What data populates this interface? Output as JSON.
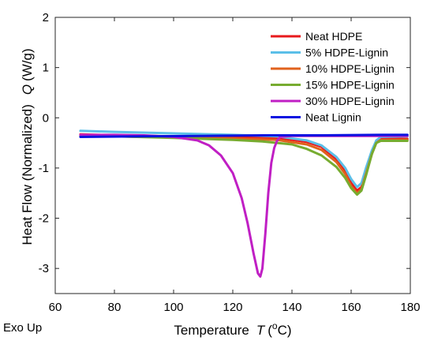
{
  "chart_data": {
    "type": "line",
    "xlabel": "Temperature",
    "xlabel_var": "T",
    "xlabel_unit_open": "(",
    "xlabel_unit_sup": "o",
    "xlabel_unit_rest": "C)",
    "ylabel": "Heat Flow (Normalized)",
    "ylabel_var": "Q",
    "ylabel_unit": "(W/g)",
    "annotation": "Exo Up",
    "xlim": [
      60,
      180
    ],
    "ylim": [
      -3.5,
      2
    ],
    "xticks": [
      60,
      80,
      100,
      120,
      140,
      160,
      180
    ],
    "yticks": [
      2,
      1,
      0,
      -1,
      -2,
      -3
    ],
    "grid": false,
    "legend_position": "top-right",
    "series": [
      {
        "name": "Neat HDPE",
        "color": "#e8191c",
        "points": [
          [
            68.5,
            -0.33
          ],
          [
            80,
            -0.35
          ],
          [
            100,
            -0.37
          ],
          [
            120,
            -0.38
          ],
          [
            135,
            -0.4
          ],
          [
            145,
            -0.48
          ],
          [
            150,
            -0.58
          ],
          [
            155,
            -0.82
          ],
          [
            158,
            -1.05
          ],
          [
            160,
            -1.3
          ],
          [
            162,
            -1.45
          ],
          [
            163.5,
            -1.38
          ],
          [
            165,
            -1.1
          ],
          [
            167,
            -0.7
          ],
          [
            168.5,
            -0.48
          ],
          [
            170,
            -0.42
          ],
          [
            179,
            -0.42
          ]
        ]
      },
      {
        "name": "5% HDPE-Lignin",
        "color": "#5bbfe8",
        "points": [
          [
            68.5,
            -0.26
          ],
          [
            80,
            -0.28
          ],
          [
            100,
            -0.31
          ],
          [
            120,
            -0.34
          ],
          [
            135,
            -0.37
          ],
          [
            145,
            -0.45
          ],
          [
            150,
            -0.55
          ],
          [
            155,
            -0.78
          ],
          [
            158,
            -1.0
          ],
          [
            160,
            -1.22
          ],
          [
            162,
            -1.38
          ],
          [
            163.5,
            -1.3
          ],
          [
            165,
            -1.0
          ],
          [
            167,
            -0.65
          ],
          [
            168.5,
            -0.45
          ],
          [
            170,
            -0.38
          ],
          [
            179,
            -0.37
          ]
        ]
      },
      {
        "name": "10% HDPE-Lignin",
        "color": "#e0621c",
        "points": [
          [
            68.5,
            -0.36
          ],
          [
            80,
            -0.37
          ],
          [
            100,
            -0.39
          ],
          [
            120,
            -0.41
          ],
          [
            135,
            -0.44
          ],
          [
            145,
            -0.53
          ],
          [
            150,
            -0.64
          ],
          [
            155,
            -0.88
          ],
          [
            158,
            -1.12
          ],
          [
            160,
            -1.36
          ],
          [
            162,
            -1.5
          ],
          [
            163.5,
            -1.42
          ],
          [
            165,
            -1.12
          ],
          [
            167,
            -0.72
          ],
          [
            168.5,
            -0.5
          ],
          [
            170,
            -0.44
          ],
          [
            179,
            -0.44
          ]
        ]
      },
      {
        "name": "15% HDPE-Lignin",
        "color": "#77ac30",
        "points": [
          [
            68.5,
            -0.36
          ],
          [
            80,
            -0.37
          ],
          [
            100,
            -0.4
          ],
          [
            120,
            -0.44
          ],
          [
            130,
            -0.47
          ],
          [
            140,
            -0.53
          ],
          [
            145,
            -0.62
          ],
          [
            150,
            -0.75
          ],
          [
            155,
            -0.98
          ],
          [
            158,
            -1.2
          ],
          [
            160,
            -1.4
          ],
          [
            162,
            -1.53
          ],
          [
            163.5,
            -1.45
          ],
          [
            165,
            -1.15
          ],
          [
            167,
            -0.72
          ],
          [
            168.5,
            -0.5
          ],
          [
            170,
            -0.46
          ],
          [
            179,
            -0.46
          ]
        ]
      },
      {
        "name": "30% HDPE-Lignin",
        "color": "#c01fc4",
        "points": [
          [
            68.5,
            -0.34
          ],
          [
            80,
            -0.34
          ],
          [
            90,
            -0.35
          ],
          [
            100,
            -0.38
          ],
          [
            108,
            -0.45
          ],
          [
            112,
            -0.55
          ],
          [
            116,
            -0.75
          ],
          [
            120,
            -1.1
          ],
          [
            123,
            -1.6
          ],
          [
            125,
            -2.1
          ],
          [
            127,
            -2.7
          ],
          [
            128.5,
            -3.1
          ],
          [
            129.3,
            -3.16
          ],
          [
            130,
            -3.0
          ],
          [
            131,
            -2.3
          ],
          [
            132,
            -1.5
          ],
          [
            133,
            -0.9
          ],
          [
            134,
            -0.6
          ],
          [
            135,
            -0.45
          ],
          [
            136,
            -0.38
          ],
          [
            140,
            -0.36
          ],
          [
            150,
            -0.36
          ],
          [
            160,
            -0.36
          ],
          [
            170,
            -0.36
          ],
          [
            179,
            -0.36
          ]
        ]
      },
      {
        "name": "Neat Lignin",
        "color": "#0a12e0",
        "points": [
          [
            68.5,
            -0.38
          ],
          [
            90,
            -0.37
          ],
          [
            110,
            -0.36
          ],
          [
            130,
            -0.35
          ],
          [
            150,
            -0.35
          ],
          [
            170,
            -0.34
          ],
          [
            179,
            -0.34
          ]
        ]
      }
    ]
  }
}
